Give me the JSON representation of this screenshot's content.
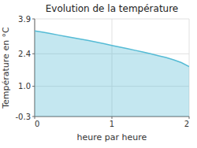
{
  "chart_data": {
    "type": "area",
    "title": "Evolution de la température",
    "x_label": "heure par heure",
    "y_label": "Température en °C",
    "x": [
      0.0,
      0.1,
      0.2,
      0.3,
      0.4,
      0.5,
      0.6,
      0.7,
      0.8,
      0.9,
      1.0,
      1.1,
      1.2,
      1.3,
      1.4,
      1.5,
      1.6,
      1.7,
      1.8,
      1.9,
      2.0
    ],
    "values": [
      3.38,
      3.33,
      3.27,
      3.21,
      3.15,
      3.09,
      3.03,
      2.97,
      2.9,
      2.83,
      2.76,
      2.69,
      2.62,
      2.55,
      2.48,
      2.4,
      2.32,
      2.24,
      2.14,
      2.02,
      1.85
    ],
    "color": "#55bbd5",
    "xlim": [
      0,
      2
    ],
    "ylim": [
      -0.3,
      3.9
    ],
    "xticks": [
      0,
      1,
      2
    ],
    "yticks": [
      -0.3,
      {
        "value": 1.0,
        "label": "1.0"
      },
      2.4,
      3.9
    ],
    "grid": true
  }
}
